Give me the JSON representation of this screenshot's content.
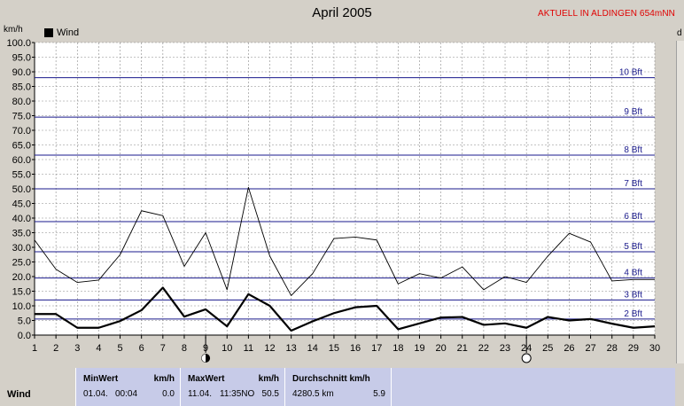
{
  "status_text": "AKTUELL IN ALDINGEN 654mNN",
  "y_unit": "km/h",
  "y_unit_right": "d",
  "chart_data": {
    "type": "line",
    "title": "April 2005",
    "x": [
      1,
      2,
      3,
      4,
      5,
      6,
      7,
      8,
      9,
      10,
      11,
      12,
      13,
      14,
      15,
      16,
      17,
      18,
      19,
      20,
      21,
      22,
      23,
      24,
      25,
      26,
      27,
      28,
      29,
      30
    ],
    "xlim": [
      1,
      30
    ],
    "ylim": [
      0,
      100
    ],
    "yticks": [
      "0.0",
      "5.0",
      "10.0",
      "15.0",
      "20.0",
      "25.0",
      "30.0",
      "35.0",
      "40.0",
      "45.0",
      "50.0",
      "55.0",
      "60.0",
      "65.0",
      "70.0",
      "75.0",
      "80.0",
      "85.0",
      "90.0",
      "95.0",
      "100.0"
    ],
    "grid": true,
    "legend": "top-left",
    "series": [
      {
        "name": "Wind",
        "values": [
          7.2,
          7.2,
          2.5,
          2.5,
          4.8,
          8.5,
          16.2,
          6.3,
          8.8,
          3.0,
          14.0,
          10.0,
          1.5,
          4.7,
          7.5,
          9.5,
          10.0,
          2.0,
          4.0,
          6.0,
          6.2,
          3.5,
          4.0,
          2.5,
          6.2,
          5.0,
          5.5,
          3.9,
          2.5,
          3.0
        ],
        "color": "#000000",
        "style": "thick"
      },
      {
        "name": "",
        "values": [
          32.5,
          22.5,
          18.0,
          18.8,
          27.5,
          42.5,
          40.8,
          23.5,
          35.0,
          15.5,
          50.5,
          27.0,
          13.5,
          21.0,
          33.0,
          33.5,
          32.5,
          17.5,
          21.0,
          19.5,
          23.3,
          15.5,
          20.0,
          18.0,
          27.0,
          34.8,
          31.8,
          18.5,
          19.0,
          19.0
        ],
        "color": "#000000",
        "style": "thin"
      }
    ],
    "beaufort_lines": [
      {
        "label": "2 Bft",
        "value": 5.5
      },
      {
        "label": "3 Bft",
        "value": 12.0
      },
      {
        "label": "4 Bft",
        "value": 19.5
      },
      {
        "label": "5 Bft",
        "value": 28.5
      },
      {
        "label": "6 Bft",
        "value": 38.8
      },
      {
        "label": "7 Bft",
        "value": 50.0
      },
      {
        "label": "8 Bft",
        "value": 61.5
      },
      {
        "label": "9 Bft",
        "value": 74.5
      },
      {
        "label": "10 Bft",
        "value": 88.0
      }
    ],
    "moon_markers": [
      {
        "day": 9,
        "phase": "new-moon"
      },
      {
        "day": 24,
        "phase": "full-moon"
      }
    ]
  },
  "table": {
    "row_label": "Wind",
    "min_header": "MinWert",
    "min_unit": "km/h",
    "min_date": "01.04.",
    "min_time": "00:04",
    "min_value": "0.0",
    "max_header": "MaxWert",
    "max_unit": "km/h",
    "max_date": "11.04.",
    "max_time": "11:35NO",
    "max_value": "50.5",
    "avg_header": "Durchschnitt km/h",
    "avg_total": "4280.5 km",
    "avg_value": "5.9"
  }
}
